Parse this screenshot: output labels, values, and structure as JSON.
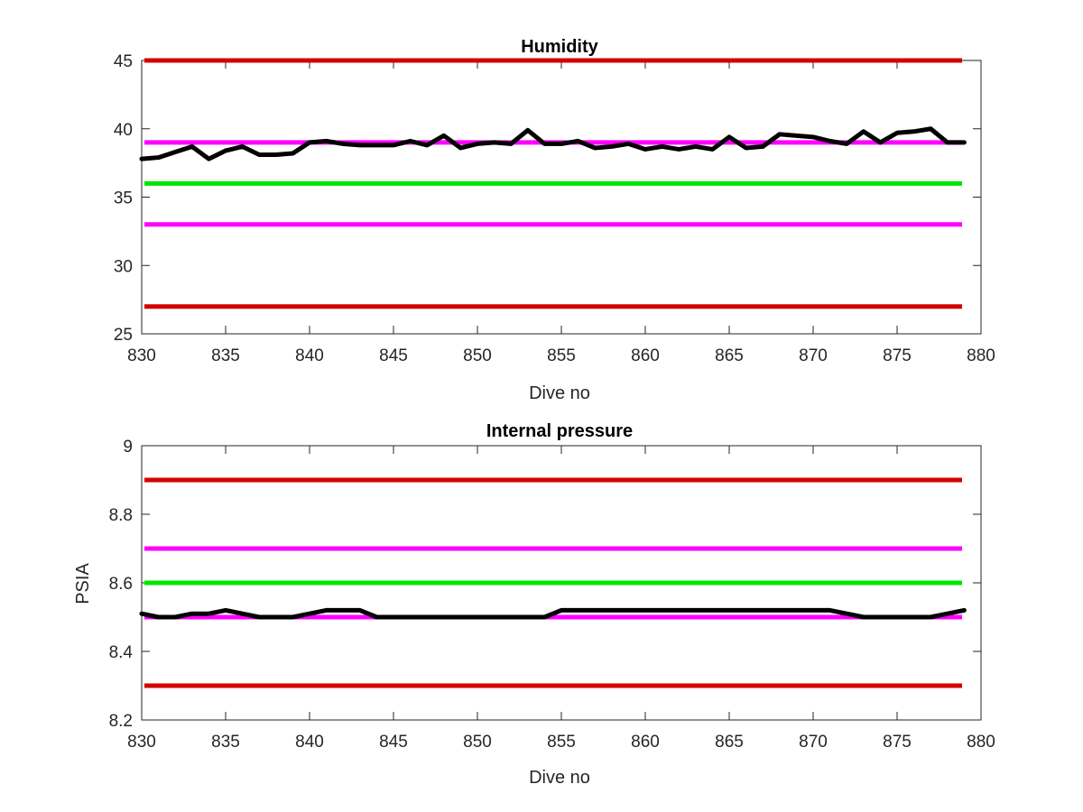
{
  "chart_data": [
    {
      "type": "line",
      "title": "Humidity",
      "xlabel": "Dive no",
      "ylabel": "",
      "xlim": [
        830,
        880
      ],
      "ylim": [
        25,
        45
      ],
      "xticks": [
        830,
        835,
        840,
        845,
        850,
        855,
        860,
        865,
        870,
        875,
        880
      ],
      "yticks": [
        25,
        30,
        35,
        40,
        45
      ],
      "grid": false,
      "legend": null,
      "reference_lines": [
        {
          "y": 45,
          "color": "#d40000"
        },
        {
          "y": 39,
          "color": "#ff00ff"
        },
        {
          "y": 36,
          "color": "#00e600"
        },
        {
          "y": 33,
          "color": "#ff00ff"
        },
        {
          "y": 27,
          "color": "#d40000"
        }
      ],
      "series": [
        {
          "color": "#000000",
          "x": [
            830,
            831,
            832,
            833,
            834,
            835,
            836,
            837,
            838,
            839,
            840,
            841,
            842,
            843,
            844,
            845,
            846,
            847,
            848,
            849,
            850,
            851,
            852,
            853,
            854,
            855,
            856,
            857,
            858,
            859,
            860,
            861,
            862,
            863,
            864,
            865,
            866,
            867,
            868,
            869,
            870,
            871,
            872,
            873,
            874,
            875,
            876,
            877,
            878,
            879
          ],
          "y": [
            37.8,
            37.9,
            38.3,
            38.7,
            37.8,
            38.4,
            38.7,
            38.1,
            38.1,
            38.2,
            39.0,
            39.1,
            38.9,
            38.8,
            38.8,
            38.8,
            39.1,
            38.8,
            39.5,
            38.6,
            38.9,
            39.0,
            38.9,
            39.9,
            38.9,
            38.9,
            39.1,
            38.6,
            38.7,
            38.9,
            38.5,
            38.7,
            38.5,
            38.7,
            38.5,
            39.4,
            38.6,
            38.7,
            39.6,
            39.5,
            39.4,
            39.1,
            38.9,
            39.8,
            39.0,
            39.7,
            39.8,
            40.0,
            39.0,
            39.0
          ]
        }
      ]
    },
    {
      "type": "line",
      "title": "Internal pressure",
      "xlabel": "Dive no",
      "ylabel": "PSIA",
      "xlim": [
        830,
        880
      ],
      "ylim": [
        8.2,
        9.0
      ],
      "xticks": [
        830,
        835,
        840,
        845,
        850,
        855,
        860,
        865,
        870,
        875,
        880
      ],
      "yticks": [
        8.2,
        8.4,
        8.6,
        8.8,
        9
      ],
      "grid": false,
      "legend": null,
      "reference_lines": [
        {
          "y": 8.9,
          "color": "#d40000"
        },
        {
          "y": 8.7,
          "color": "#ff00ff"
        },
        {
          "y": 8.6,
          "color": "#00e600"
        },
        {
          "y": 8.5,
          "color": "#ff00ff"
        },
        {
          "y": 8.3,
          "color": "#d40000"
        }
      ],
      "series": [
        {
          "color": "#000000",
          "x": [
            830,
            831,
            832,
            833,
            834,
            835,
            836,
            837,
            838,
            839,
            840,
            841,
            842,
            843,
            844,
            845,
            846,
            847,
            848,
            849,
            850,
            851,
            852,
            853,
            854,
            855,
            856,
            857,
            858,
            859,
            860,
            861,
            862,
            863,
            864,
            865,
            866,
            867,
            868,
            869,
            870,
            871,
            872,
            873,
            874,
            875,
            876,
            877,
            878,
            879
          ],
          "y": [
            8.51,
            8.5,
            8.5,
            8.51,
            8.51,
            8.52,
            8.51,
            8.5,
            8.5,
            8.5,
            8.51,
            8.52,
            8.52,
            8.52,
            8.5,
            8.5,
            8.5,
            8.5,
            8.5,
            8.5,
            8.5,
            8.5,
            8.5,
            8.5,
            8.5,
            8.52,
            8.52,
            8.52,
            8.52,
            8.52,
            8.52,
            8.52,
            8.52,
            8.52,
            8.52,
            8.52,
            8.52,
            8.52,
            8.52,
            8.52,
            8.52,
            8.52,
            8.51,
            8.5,
            8.5,
            8.5,
            8.5,
            8.5,
            8.51,
            8.52
          ]
        }
      ]
    }
  ]
}
